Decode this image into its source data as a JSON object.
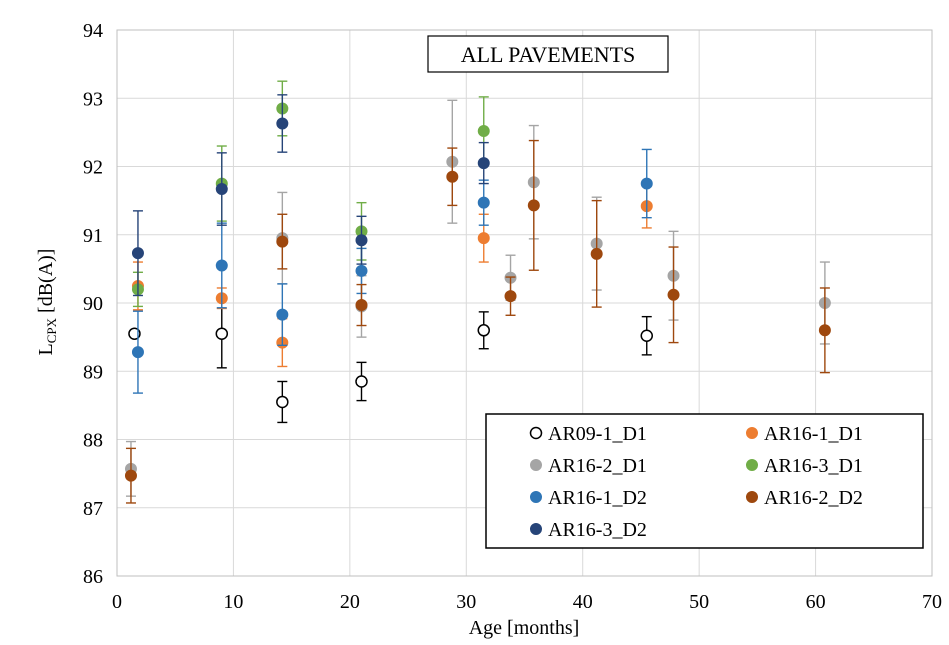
{
  "chart_data": {
    "type": "scatter",
    "title": "ALL PAVEMENTS",
    "xlabel": "Age [months]",
    "ylabel": {
      "main": "L",
      "sub": "CPX",
      "rest": " [dB(A)]"
    },
    "xlim": [
      0,
      70
    ],
    "ylim": [
      86,
      94
    ],
    "x_ticks": [
      "0",
      "10",
      "20",
      "30",
      "40",
      "50",
      "60",
      "70"
    ],
    "y_ticks": [
      "86",
      "87",
      "88",
      "89",
      "90",
      "91",
      "92",
      "93",
      "94"
    ],
    "grid": true,
    "error_bars": true,
    "legend_position": "lower-right",
    "colors": {
      "AR09-1_D1": "#000000",
      "AR16-1_D1": "#ED7D31",
      "AR16-2_D1": "#A5A5A5",
      "AR16-3_D1": "#70AD47",
      "AR16-1_D2": "#2E75B6",
      "AR16-2_D2": "#9E480E",
      "AR16-3_D2": "#264478"
    },
    "series": [
      {
        "name": "AR09-1_D1",
        "marker": "hollow-circle",
        "points": [
          {
            "x": 1.5,
            "y": 89.55,
            "err": 0
          },
          {
            "x": 9.0,
            "y": 89.55,
            "err": 0.5
          },
          {
            "x": 14.2,
            "y": 88.55,
            "err": 0.3
          },
          {
            "x": 21.0,
            "y": 88.85,
            "err": 0.28
          },
          {
            "x": 31.5,
            "y": 89.6,
            "err": 0.27
          },
          {
            "x": 45.5,
            "y": 89.52,
            "err": 0.28
          }
        ]
      },
      {
        "name": "AR16-1_D1",
        "marker": "circle",
        "points": [
          {
            "x": 1.8,
            "y": 90.25,
            "err": 0.35
          },
          {
            "x": 9.0,
            "y": 90.07,
            "err": 0.15
          },
          {
            "x": 14.2,
            "y": 89.42,
            "err": 0.35
          },
          {
            "x": 31.5,
            "y": 90.95,
            "err": 0.35
          },
          {
            "x": 45.5,
            "y": 91.42,
            "err": 0.32
          }
        ]
      },
      {
        "name": "AR16-2_D1",
        "marker": "circle",
        "points": [
          {
            "x": 1.2,
            "y": 87.57,
            "err": 0.4
          },
          {
            "x": 14.2,
            "y": 90.95,
            "err": 0.67
          },
          {
            "x": 21.0,
            "y": 89.95,
            "err": 0.45
          },
          {
            "x": 28.8,
            "y": 92.07,
            "err": 0.9
          },
          {
            "x": 33.8,
            "y": 90.37,
            "err": 0.33
          },
          {
            "x": 35.8,
            "y": 91.77,
            "err": 0.83
          },
          {
            "x": 41.2,
            "y": 90.87,
            "err": 0.68
          },
          {
            "x": 47.8,
            "y": 90.4,
            "err": 0.65
          },
          {
            "x": 60.8,
            "y": 90.0,
            "err": 0.6
          }
        ]
      },
      {
        "name": "AR16-3_D1",
        "marker": "circle",
        "points": [
          {
            "x": 1.8,
            "y": 90.2,
            "err": 0.25
          },
          {
            "x": 9.0,
            "y": 91.75,
            "err": 0.55
          },
          {
            "x": 14.2,
            "y": 92.85,
            "err": 0.4
          },
          {
            "x": 21.0,
            "y": 91.05,
            "err": 0.42
          },
          {
            "x": 31.5,
            "y": 92.52,
            "err": 0.5
          }
        ]
      },
      {
        "name": "AR16-1_D2",
        "marker": "circle",
        "points": [
          {
            "x": 1.8,
            "y": 89.28,
            "err": 0.6
          },
          {
            "x": 9.0,
            "y": 90.55,
            "err": 0.62
          },
          {
            "x": 14.2,
            "y": 89.83,
            "err": 0.45
          },
          {
            "x": 21.0,
            "y": 90.47,
            "err": 0.33
          },
          {
            "x": 31.5,
            "y": 91.47,
            "err": 0.33
          },
          {
            "x": 45.5,
            "y": 91.75,
            "err": 0.5
          }
        ]
      },
      {
        "name": "AR16-2_D2",
        "marker": "circle",
        "points": [
          {
            "x": 1.2,
            "y": 87.47,
            "err": 0.4
          },
          {
            "x": 14.2,
            "y": 90.9,
            "err": 0.4
          },
          {
            "x": 21.0,
            "y": 89.97,
            "err": 0.3
          },
          {
            "x": 28.8,
            "y": 91.85,
            "err": 0.42
          },
          {
            "x": 33.8,
            "y": 90.1,
            "err": 0.28
          },
          {
            "x": 35.8,
            "y": 91.43,
            "err": 0.95
          },
          {
            "x": 41.2,
            "y": 90.72,
            "err": 0.78
          },
          {
            "x": 47.8,
            "y": 90.12,
            "err": 0.7
          },
          {
            "x": 60.8,
            "y": 89.6,
            "err": 0.62
          }
        ]
      },
      {
        "name": "AR16-3_D2",
        "marker": "circle",
        "points": [
          {
            "x": 1.8,
            "y": 90.73,
            "err": 0.62
          },
          {
            "x": 9.0,
            "y": 91.67,
            "err": 0.53
          },
          {
            "x": 14.2,
            "y": 92.63,
            "err": 0.42
          },
          {
            "x": 21.0,
            "y": 90.92,
            "err": 0.35
          },
          {
            "x": 31.5,
            "y": 92.05,
            "err": 0.3
          }
        ]
      }
    ]
  }
}
